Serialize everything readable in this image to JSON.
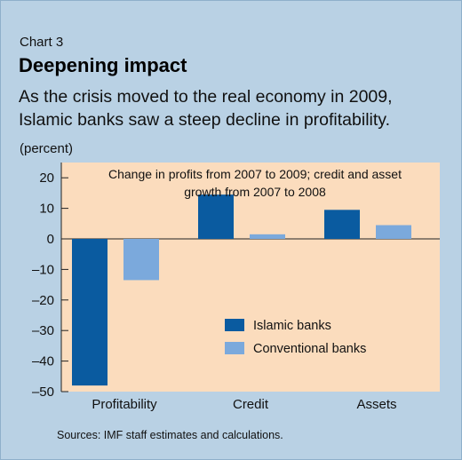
{
  "header": {
    "chart_number": "Chart 3",
    "title": "Deepening impact",
    "subtitle": "As the crisis moved to the real economy in 2009, Islamic banks saw a steep decline in profitability.",
    "unit": "(percent)"
  },
  "source": "Sources: IMF staff estimates and calculations.",
  "colors": {
    "background": "#b9d1e4",
    "plot_area": "#fbdcbd",
    "islamic": "#0a5ba0",
    "conventional": "#7ba9dc"
  },
  "chart_data": {
    "type": "bar",
    "inset_title_lines": [
      "Change in profits from 2007 to 2009; credit and asset",
      "growth from 2007 to 2008"
    ],
    "categories": [
      "Profitability",
      "Credit",
      "Assets"
    ],
    "series": [
      {
        "name": "Islamic banks",
        "values": [
          -48,
          14.5,
          9.5
        ]
      },
      {
        "name": "Conventional banks",
        "values": [
          -13.5,
          1.5,
          4.5
        ]
      }
    ],
    "ylim": [
      -50,
      25
    ],
    "yticks": [
      20,
      10,
      0,
      -10,
      -20,
      -30,
      -40,
      -50
    ],
    "ytick_labels": [
      "20",
      "10",
      "0",
      "–10",
      "–20",
      "–30",
      "–40",
      "–50"
    ],
    "legend_position": "lower-right",
    "grid": false
  }
}
